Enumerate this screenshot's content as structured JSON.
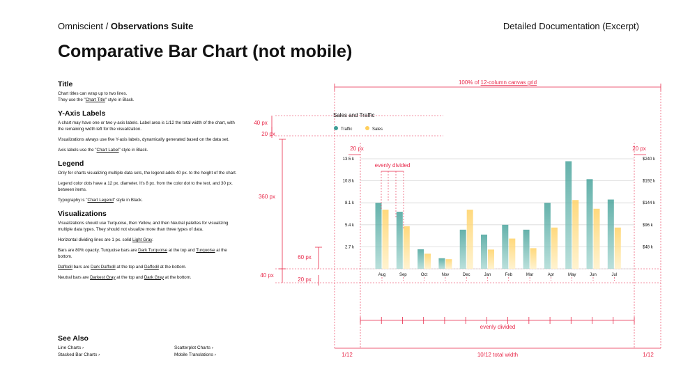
{
  "header": {
    "brand": "Omniscient",
    "separator": " / ",
    "suite": "Observations Suite",
    "doc_label": "Detailed Documentation (Excerpt)"
  },
  "page_title": "Comparative Bar Chart (not mobile)",
  "sections": {
    "title": {
      "heading": "Title",
      "p1": "Chart titles can wrap up to two lines.",
      "p2_prefix": "They use the \"",
      "p2_link": "Chart Title",
      "p2_suffix": "\" style in Black."
    },
    "yaxis": {
      "heading": "Y-Axis Labels",
      "p1": "A chart may have one or two y-axis labels. Label area is 1/12 the total width of the chart, with the remaining width left for the visualization.",
      "p2": "Visualizations always use five Y-axis labels, dynamically generated based on the data set.",
      "p3_prefix": "Axis labels use the \"",
      "p3_link": "Chart Label",
      "p3_suffix": "\" style in Black."
    },
    "legend": {
      "heading": "Legend",
      "p1": "Only for charts visualizing multiple data sets, the legend adds 40 px. to the height of the chart.",
      "p2": "Legend color dots have a 12 px. diameter. It's 8 px. from the color dot to the text, and 30 px. between items.",
      "p3_prefix": "Typography is \"",
      "p3_link": "Chart Legend",
      "p3_suffix": "\" style in Black."
    },
    "visualizations": {
      "heading": "Visualizations",
      "p1": "Visualizations should use Turquoise, then Yellow, and then Neutral palettes for visualizing multiple data types. They should not visualize more than three types of data.",
      "p2_prefix": "Horizontal dividing lines are 1 px. solid ",
      "p2_link": "Light Gray",
      "p2_suffix": ".",
      "p3_prefix": "Bars are 80% opacity. Turquoise bars are ",
      "p3_link1": "Dark Turquoise",
      "p3_mid": " at the top and ",
      "p3_link2": "Turquoise",
      "p3_suffix": " at the bottom.",
      "p4_link1": "Daffodil",
      "p4_mid1": " bars are ",
      "p4_link2": "Dark Daffodil",
      "p4_mid2": " at the top and ",
      "p4_link3": "Daffodil",
      "p4_suffix": " at the bottom.",
      "p5_prefix": "Neutral bars are ",
      "p5_link1": "Darkest Gray",
      "p5_mid": " at the top and ",
      "p5_link2": "Dark Gray",
      "p5_suffix": " at the bottom."
    }
  },
  "see_also": {
    "heading": "See Also",
    "links": [
      "Line Charts ›",
      "Scatterplot Charts ›",
      "Stacked Bar Charts ›",
      "Mobile Translations ›"
    ]
  },
  "colors": {
    "accent": "#e8294a",
    "turquoise_top": "#3e9e96",
    "turquoise_bottom": "#a8d8d2",
    "daffodil_top": "#ffcf5c",
    "daffodil_bottom": "#fff0c4",
    "grid": "#d7d7d7"
  },
  "chart_data": {
    "type": "bar",
    "title": "Sales and Traffic",
    "categories": [
      "Aug",
      "Sep",
      "Oct",
      "Nov",
      "Dec",
      "Jan",
      "Feb",
      "Mar",
      "Apr",
      "May",
      "Jun",
      "Jul"
    ],
    "series": [
      {
        "name": "Traffic",
        "axis": "left",
        "values": [
          8.1,
          7.0,
          2.4,
          1.3,
          4.8,
          4.2,
          5.4,
          4.8,
          8.1,
          13.2,
          11.0,
          8.5
        ]
      },
      {
        "name": "Sales",
        "axis": "right",
        "values": [
          129,
          93,
          33,
          21,
          129,
          42,
          66,
          45,
          90,
          150,
          131,
          90
        ]
      }
    ],
    "y_left_ticks": [
      "13.5 k",
      "10.8 k",
      "8.1 k",
      "5.4 k",
      "2.7 k"
    ],
    "y_right_ticks": [
      "$240 k",
      "$192 k",
      "$144 k",
      "$96 k",
      "$48 k"
    ],
    "y_left_range": [
      0,
      13.5
    ],
    "y_right_range": [
      0,
      240
    ],
    "legend_position": "top-left",
    "grid": true
  },
  "annotations": {
    "full_width": "100% of ",
    "full_width_link": "12-column canvas grid",
    "legend_height": "40 px",
    "legend_gap": "20 px",
    "chart_height": "360 px",
    "bar_area_bottom": "60 px",
    "axis_height": "40 px",
    "axis_gap": "20 px",
    "pad_left": "20 px",
    "pad_right": "20 px",
    "evenly_divided_top": "evenly divided",
    "evenly_divided_bottom": "evenly divided",
    "left_fraction": "1/12",
    "center_fraction": "10/12 total width",
    "right_fraction": "1/12"
  }
}
